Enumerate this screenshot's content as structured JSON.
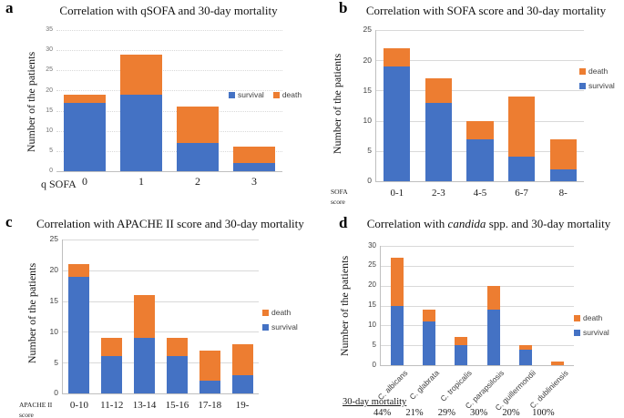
{
  "colors": {
    "survival": "#4472C4",
    "death": "#ED7D31",
    "gridline": "#D9D9D9",
    "axis": "#BFBFBF"
  },
  "chart_data": [
    {
      "panel_letter": "a",
      "type": "bar",
      "stacked": true,
      "title": "Correlation with qSOFA and 30-day mortality",
      "ylabel": "Number of the patients",
      "xlabel_lines": [
        "q SOFA"
      ],
      "categories": [
        "0",
        "1",
        "2",
        "3"
      ],
      "series": [
        {
          "name": "survival",
          "color": "#4472C4",
          "values": [
            17,
            19,
            7,
            2
          ]
        },
        {
          "name": "death",
          "color": "#ED7D31",
          "values": [
            2,
            10,
            9,
            4
          ]
        }
      ],
      "ylim": [
        0,
        35
      ],
      "ytick_step": 5,
      "grid": "dotted",
      "legend": {
        "orientation": "horizontal",
        "order": [
          "survival",
          "death"
        ],
        "position": "middle-right"
      }
    },
    {
      "panel_letter": "b",
      "type": "bar",
      "stacked": true,
      "title": "Correlation with SOFA score and 30-day mortality",
      "ylabel": "Number of the patients",
      "xlabel_lines": [
        "SOFA",
        "score"
      ],
      "categories": [
        "0-1",
        "2-3",
        "4-5",
        "6-7",
        "8-"
      ],
      "series": [
        {
          "name": "survival",
          "color": "#4472C4",
          "values": [
            19,
            13,
            7,
            4,
            2
          ]
        },
        {
          "name": "death",
          "color": "#ED7D31",
          "values": [
            3,
            4,
            3,
            10,
            5
          ]
        }
      ],
      "ylim": [
        0,
        25
      ],
      "ytick_step": 5,
      "grid": "solid",
      "legend": {
        "orientation": "vertical",
        "order": [
          "death",
          "survival"
        ],
        "position": "middle-right"
      }
    },
    {
      "panel_letter": "c",
      "type": "bar",
      "stacked": true,
      "title": "Correlation with APACHE II score and 30-day mortality",
      "ylabel": "Number of the patients",
      "xlabel_lines": [
        "APACHE II",
        "score"
      ],
      "categories": [
        "0-10",
        "11-12",
        "13-14",
        "15-16",
        "17-18",
        "19-"
      ],
      "series": [
        {
          "name": "survival",
          "color": "#4472C4",
          "values": [
            19,
            6,
            9,
            6,
            2,
            3
          ]
        },
        {
          "name": "death",
          "color": "#ED7D31",
          "values": [
            2,
            3,
            7,
            3,
            5,
            5
          ]
        }
      ],
      "ylim": [
        0,
        25
      ],
      "ytick_step": 5,
      "grid": "solid",
      "legend": {
        "orientation": "vertical",
        "order": [
          "death",
          "survival"
        ],
        "position": "middle-right"
      }
    },
    {
      "panel_letter": "d",
      "type": "bar",
      "stacked": true,
      "title": "Correlation with candida spp. and 30-day mortality",
      "title_italic_segment": "candida",
      "ylabel": "Number of the patients",
      "categories": [
        "C. albicans",
        "C. glabrata",
        "C. tropicalis",
        "C. parapsilosis",
        "C. guillermondii",
        "C. dubliniensis"
      ],
      "rotated_labels": true,
      "series": [
        {
          "name": "survival",
          "color": "#4472C4",
          "values": [
            15,
            11,
            5,
            14,
            4,
            0
          ]
        },
        {
          "name": "death",
          "color": "#ED7D31",
          "values": [
            12,
            3,
            2,
            6,
            1,
            1
          ]
        }
      ],
      "ylim": [
        0,
        30
      ],
      "ytick_step": 5,
      "grid": "solid",
      "legend": {
        "orientation": "vertical",
        "order": [
          "death",
          "survival"
        ],
        "position": "middle-right"
      },
      "footer": {
        "label": "30-day mortality",
        "values": [
          "44%",
          "21%",
          "29%",
          "30%",
          "20%",
          "100%"
        ]
      }
    }
  ]
}
